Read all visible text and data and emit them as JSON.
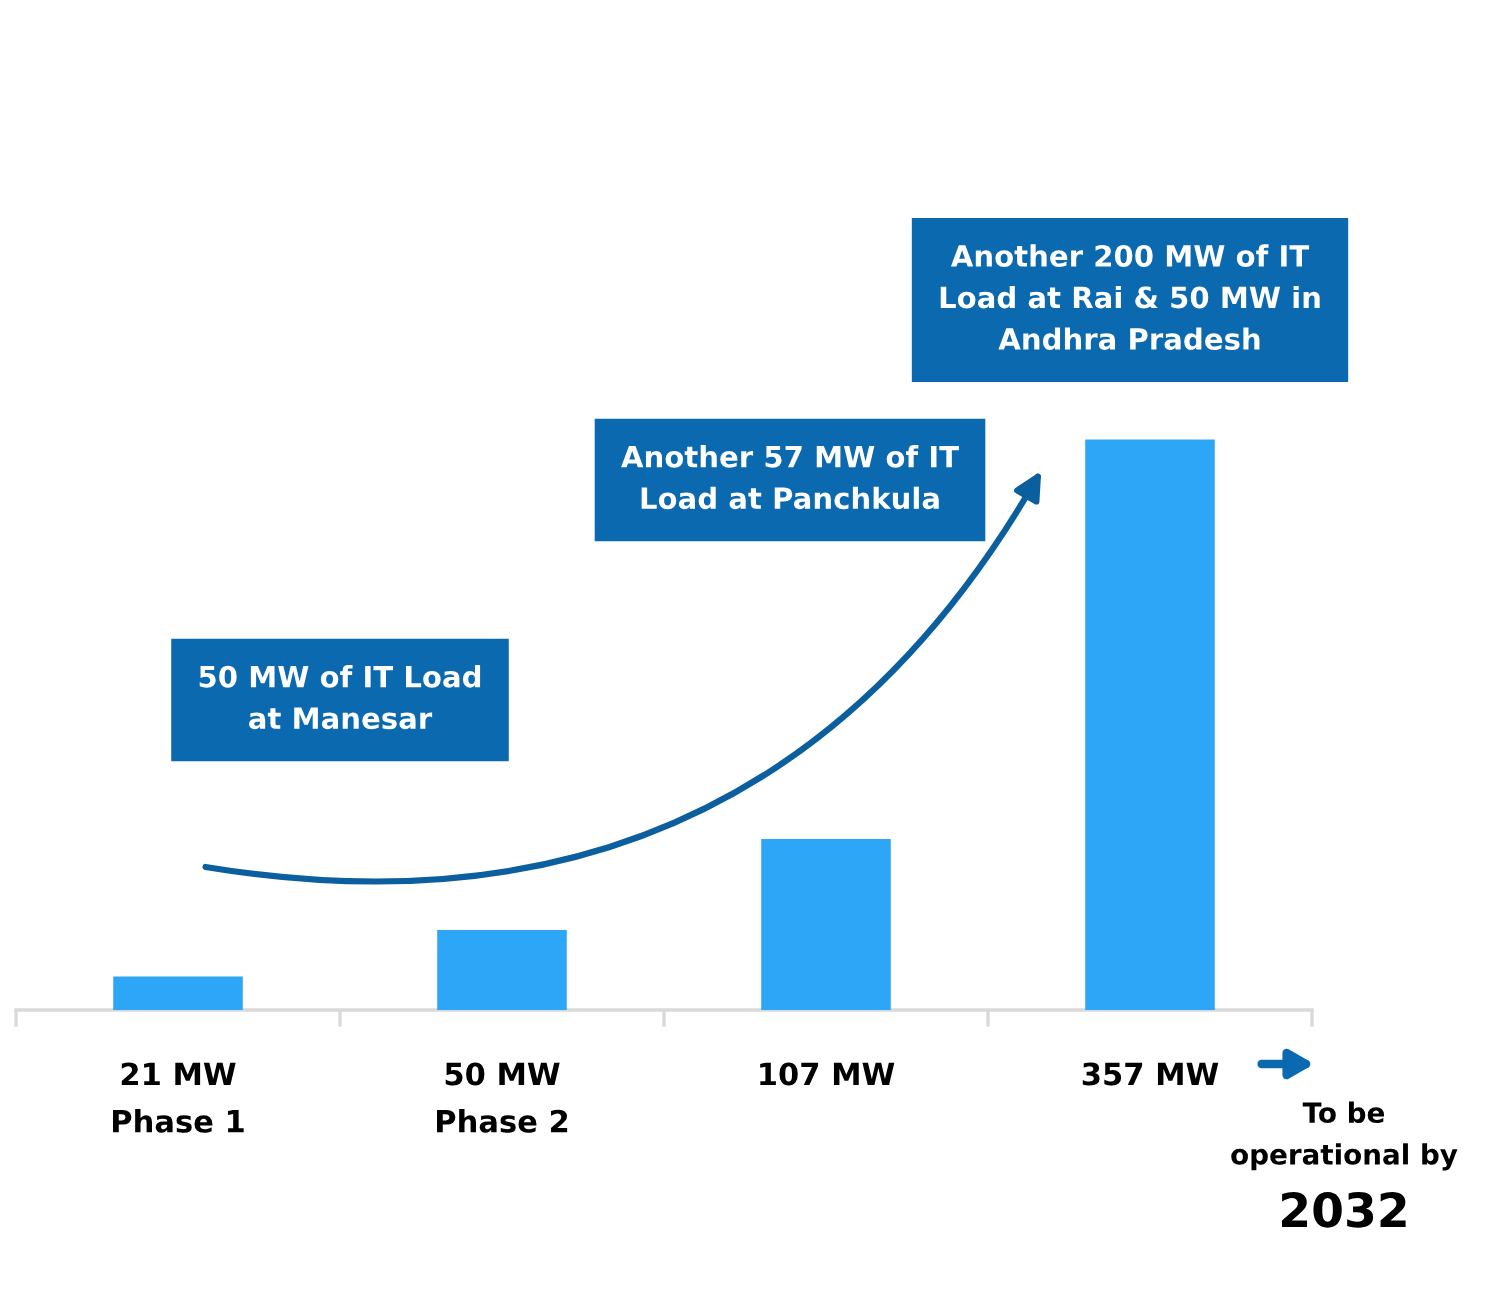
{
  "chart_data": {
    "type": "bar",
    "categories": [
      "Phase 1",
      "Phase 2",
      null,
      null
    ],
    "values": [
      21,
      50,
      107,
      357
    ],
    "value_labels": [
      "21 MW",
      "50 MW",
      "107 MW",
      "357 MW"
    ],
    "color": "#2ea6f7",
    "grid": false,
    "legend": false,
    "annotations": [
      "50 MW of IT Load\nat Manesar",
      "Another 57 MW of IT\nLoad at Panchkula",
      "Another 200 MW of IT\nLoad at Rai & 50 MW in\nAndhra Pradesh",
      "To be\noperational by",
      "2032"
    ]
  }
}
